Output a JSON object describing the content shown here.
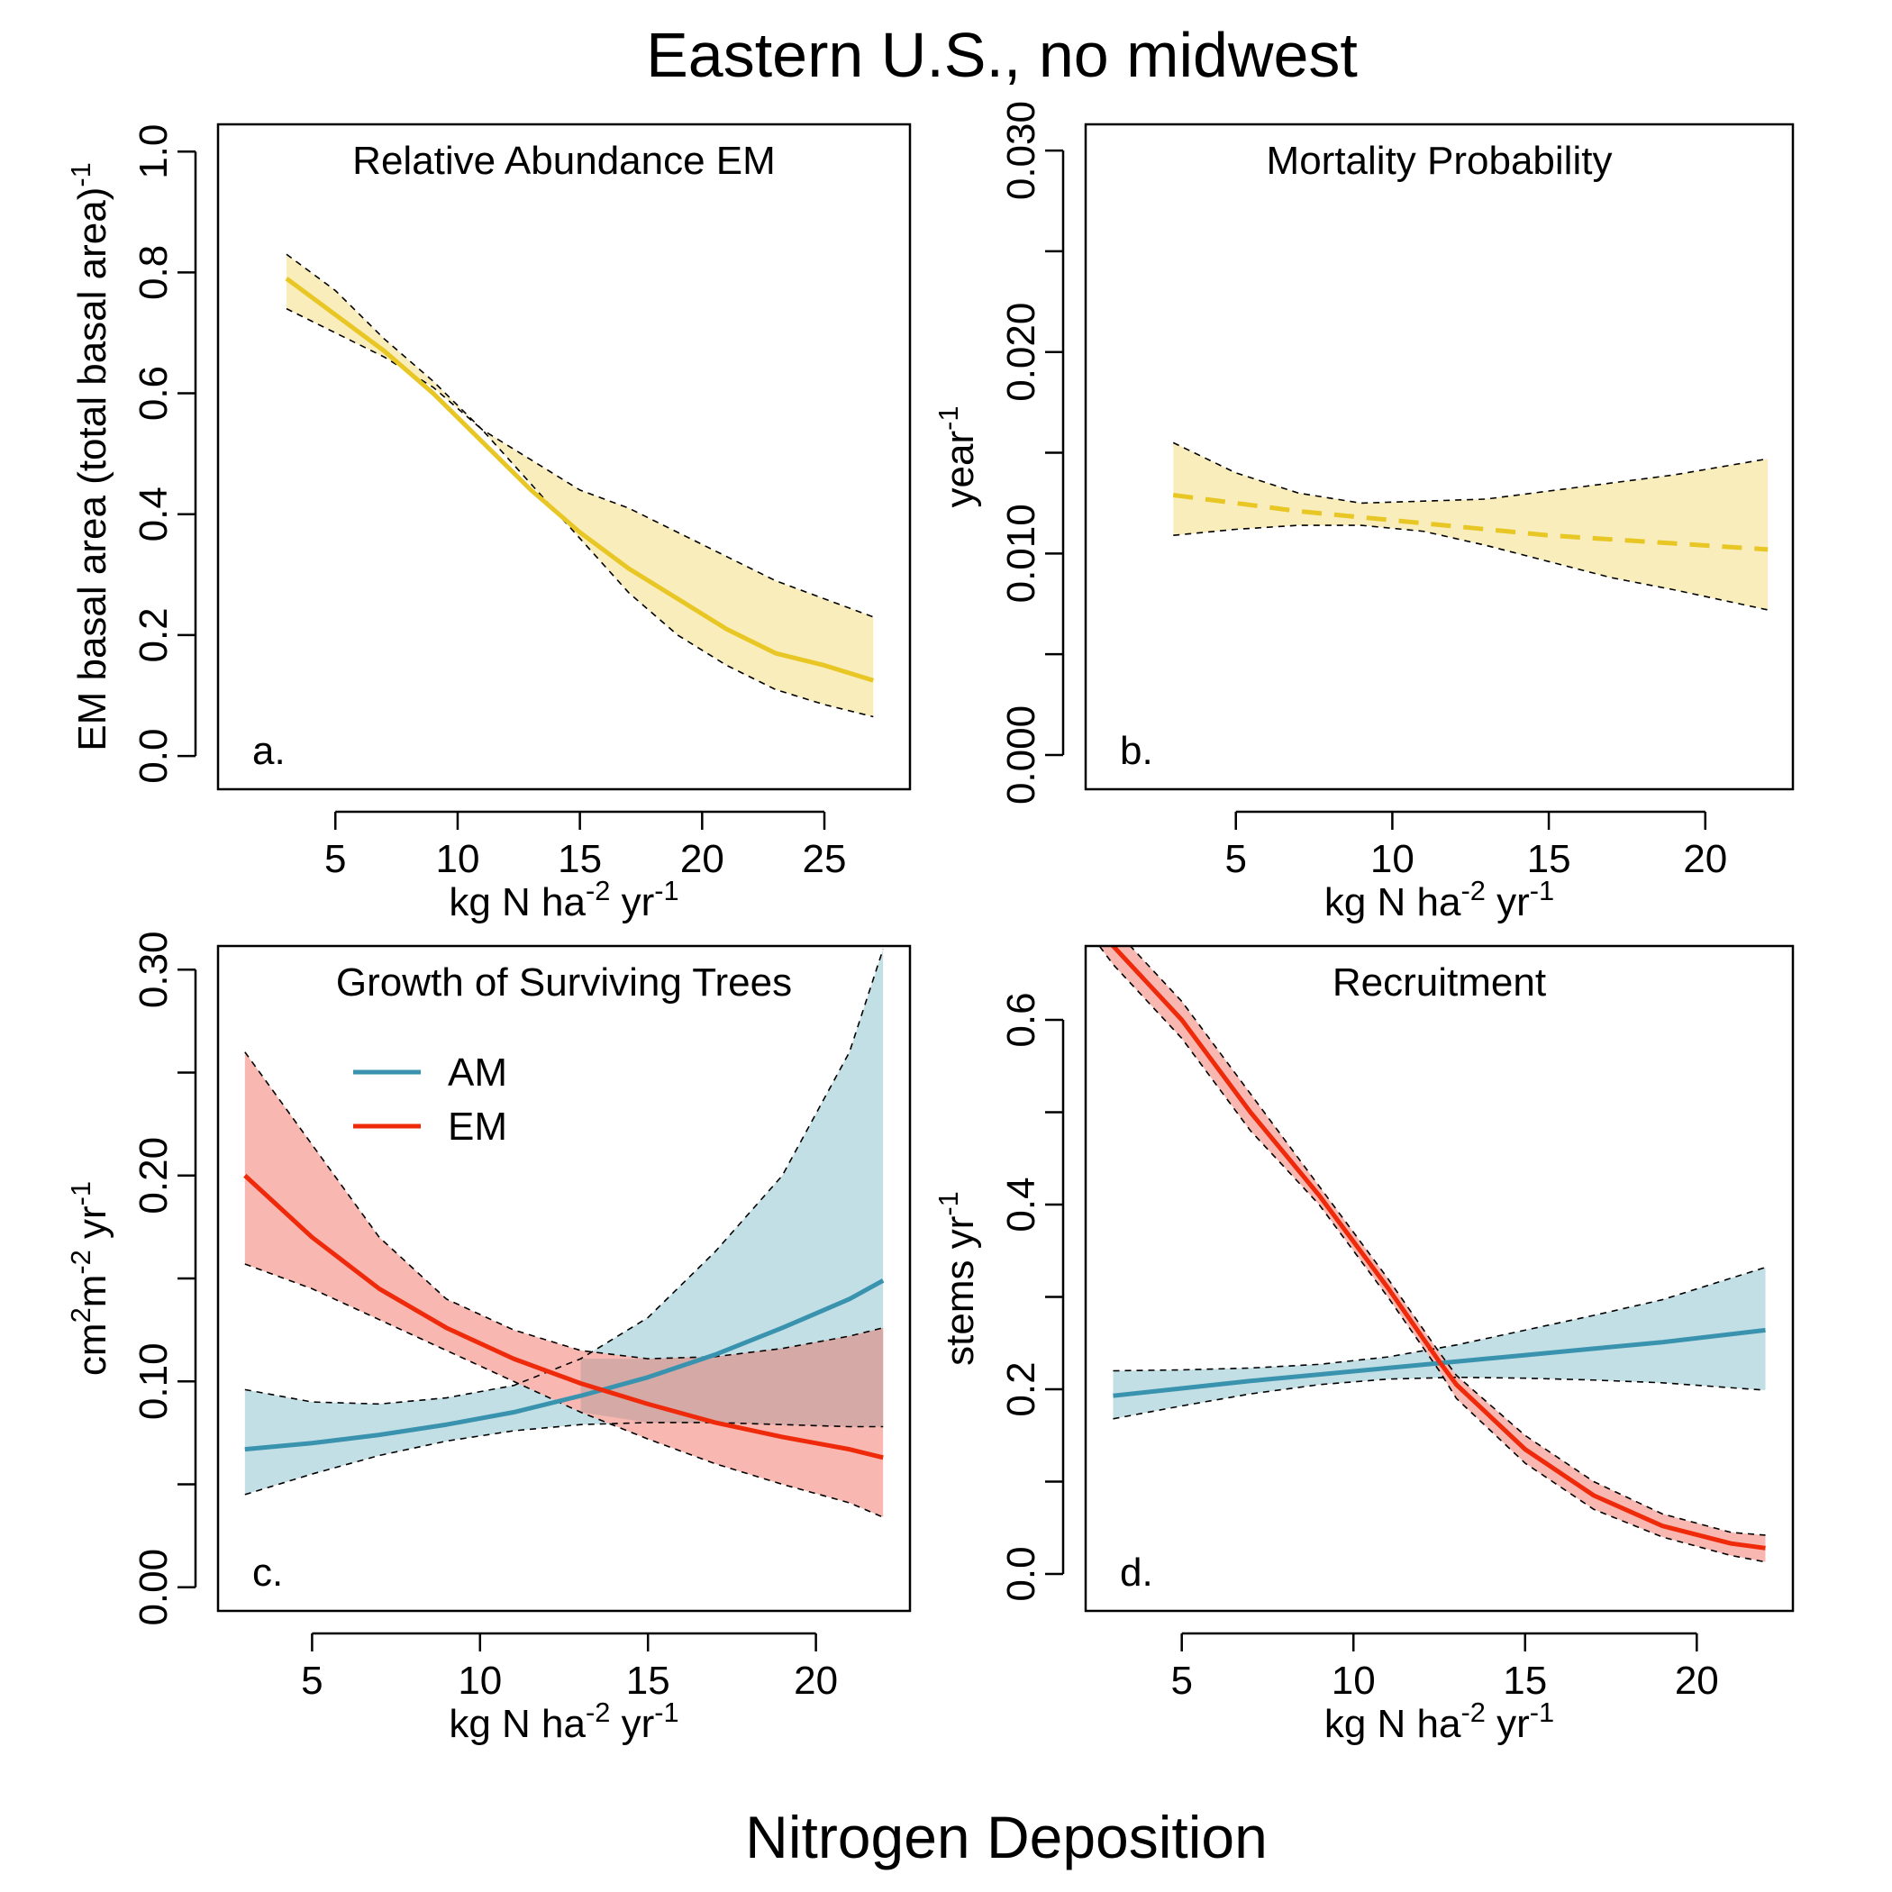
{
  "figure": {
    "title": "Eastern U.S., no midwest",
    "bottom_label": "Nitrogen Deposition"
  },
  "colors": {
    "am_line": "#3A93AE",
    "am_band": "#C3DFE6",
    "em_line": "#EE2A0B",
    "em_band": "#F8B8B1",
    "overlap_band": "#D5A9A6",
    "gold_line": "#E8C623",
    "gold_band": "#F8EDBB"
  },
  "chart_data": [
    {
      "id": "a",
      "type": "line",
      "title": "Relative Abundance EM",
      "panel_letter": "a.",
      "xlabel": {
        "main": "kg N ha",
        "sup1": "-2",
        "mid": " yr",
        "sup2": "-1"
      },
      "ylabel": {
        "main": "EM basal area  (total basal area)",
        "sup": "-1"
      },
      "xlim": [
        0.2,
        28.5
      ],
      "ylim": [
        -0.055,
        1.045
      ],
      "xticks": [
        5,
        10,
        15,
        20,
        25
      ],
      "xtick_labels": [
        "5",
        "10",
        "15",
        "20",
        "25"
      ],
      "yticks": [
        0.0,
        0.2,
        0.4,
        0.6,
        0.8,
        1.0
      ],
      "ytick_labels": [
        "0.0",
        "0.2",
        "0.4",
        "0.6",
        "0.8",
        "1.0"
      ],
      "series": [
        {
          "group": "EM",
          "style": "solid",
          "x": [
            3,
            5,
            7,
            9,
            11,
            13,
            15,
            17,
            19,
            21,
            23,
            25,
            27
          ],
          "y": [
            0.79,
            0.73,
            0.67,
            0.6,
            0.52,
            0.44,
            0.37,
            0.31,
            0.26,
            0.21,
            0.17,
            0.15,
            0.125
          ],
          "lower": [
            0.74,
            0.7,
            0.66,
            0.61,
            0.54,
            0.45,
            0.36,
            0.27,
            0.2,
            0.15,
            0.11,
            0.085,
            0.065
          ],
          "upper": [
            0.83,
            0.77,
            0.69,
            0.62,
            0.54,
            0.49,
            0.44,
            0.41,
            0.37,
            0.33,
            0.29,
            0.26,
            0.23
          ],
          "line_color": "#E8C623",
          "band_color": "#F8EDBB"
        }
      ]
    },
    {
      "id": "b",
      "type": "line",
      "title": "Mortality Probability",
      "panel_letter": "b.",
      "xlabel": {
        "main": "kg N ha",
        "sup1": "-2",
        "mid": " yr",
        "sup2": "-1"
      },
      "ylabel": {
        "main": "year",
        "sup": "-1"
      },
      "xlim": [
        0.2,
        22.8
      ],
      "ylim": [
        -0.0017,
        0.0313
      ],
      "xticks": [
        5,
        10,
        15,
        20
      ],
      "xtick_labels": [
        "5",
        "10",
        "15",
        "20"
      ],
      "yticks": [
        0.0,
        0.005,
        0.01,
        0.015,
        0.02,
        0.025,
        0.03
      ],
      "ytick_labels": [
        "0.000",
        "",
        "0.010",
        "",
        "0.020",
        "",
        "0.030"
      ],
      "series": [
        {
          "group": "EM",
          "style": "dashed",
          "x": [
            3,
            5,
            7,
            9,
            11,
            13,
            15,
            17,
            19,
            22
          ],
          "y": [
            0.0129,
            0.0125,
            0.0121,
            0.0118,
            0.0115,
            0.0112,
            0.0109,
            0.0107,
            0.0105,
            0.0102
          ],
          "lower": [
            0.0109,
            0.0112,
            0.0114,
            0.0114,
            0.0111,
            0.0104,
            0.0096,
            0.0088,
            0.0082,
            0.0072
          ],
          "upper": [
            0.0155,
            0.014,
            0.013,
            0.0125,
            0.0126,
            0.0127,
            0.0131,
            0.0135,
            0.0139,
            0.0147
          ],
          "line_color": "#E8C623",
          "band_color": "#F8EDBB"
        }
      ]
    },
    {
      "id": "c",
      "type": "line",
      "title": "Growth of Surviving Trees",
      "panel_letter": "c.",
      "xlabel": {
        "main": "kg N ha",
        "sup1": "-2",
        "mid": " yr",
        "sup2": "-1"
      },
      "ylabel": {
        "pre": "cm",
        "sup_a": "2",
        "main": "m",
        "sup_b": "-2",
        "mid": " yr",
        "sup": "-1"
      },
      "xlim": [
        2.2,
        22.8
      ],
      "ylim": [
        -0.0115,
        0.3115
      ],
      "xticks": [
        5,
        10,
        15,
        20
      ],
      "xtick_labels": [
        "5",
        "10",
        "15",
        "20"
      ],
      "yticks": [
        0.0,
        0.05,
        0.1,
        0.15,
        0.2,
        0.25,
        0.3
      ],
      "ytick_labels": [
        "0.00",
        "",
        "0.10",
        "",
        "0.20",
        "",
        "0.30"
      ],
      "legend": [
        {
          "label": "AM",
          "color": "#3A93AE"
        },
        {
          "label": "EM",
          "color": "#EE2A0B"
        }
      ],
      "series": [
        {
          "group": "AM",
          "name": "AM",
          "style": "solid",
          "x": [
            3,
            5,
            7,
            9,
            11,
            13,
            15,
            17,
            19,
            21,
            22
          ],
          "y": [
            0.067,
            0.07,
            0.074,
            0.079,
            0.085,
            0.093,
            0.102,
            0.113,
            0.126,
            0.14,
            0.149
          ],
          "lower": [
            0.045,
            0.055,
            0.064,
            0.071,
            0.076,
            0.079,
            0.08,
            0.08,
            0.079,
            0.078,
            0.078
          ],
          "upper": [
            0.096,
            0.09,
            0.089,
            0.092,
            0.098,
            0.111,
            0.131,
            0.163,
            0.2,
            0.26,
            0.31
          ],
          "line_color": "#3A93AE",
          "band_color": "#C3DFE6"
        },
        {
          "group": "EM",
          "name": "EM",
          "style": "solid",
          "x": [
            3,
            5,
            7,
            9,
            11,
            13,
            15,
            17,
            19,
            21,
            22
          ],
          "y": [
            0.2,
            0.17,
            0.145,
            0.126,
            0.111,
            0.099,
            0.089,
            0.08,
            0.073,
            0.067,
            0.063
          ],
          "lower": [
            0.157,
            0.145,
            0.13,
            0.115,
            0.1,
            0.085,
            0.072,
            0.06,
            0.05,
            0.041,
            0.034
          ],
          "upper": [
            0.26,
            0.215,
            0.17,
            0.14,
            0.125,
            0.115,
            0.111,
            0.112,
            0.116,
            0.122,
            0.126
          ],
          "line_color": "#EE2A0B",
          "band_color": "#F8B8B1"
        }
      ]
    },
    {
      "id": "d",
      "type": "line",
      "title": "Recruitment",
      "panel_letter": "d.",
      "xlabel": {
        "main": "kg N ha",
        "sup1": "-2",
        "mid": " yr",
        "sup2": "-1"
      },
      "ylabel": {
        "main": "stems yr",
        "sup": "-1"
      },
      "xlim": [
        2.2,
        22.8
      ],
      "ylim": [
        -0.04,
        0.68
      ],
      "xticks": [
        5,
        10,
        15,
        20
      ],
      "xtick_labels": [
        "5",
        "10",
        "15",
        "20"
      ],
      "yticks": [
        0.0,
        0.1,
        0.2,
        0.3,
        0.4,
        0.5,
        0.6
      ],
      "ytick_labels": [
        "0.0",
        "",
        "0.2",
        "",
        "0.4",
        "",
        "0.6"
      ],
      "series": [
        {
          "group": "AM",
          "style": "solid",
          "x": [
            3,
            5,
            7,
            9,
            11,
            13,
            15,
            17,
            19,
            22
          ],
          "y": [
            0.193,
            0.201,
            0.209,
            0.216,
            0.223,
            0.23,
            0.237,
            0.244,
            0.251,
            0.264
          ],
          "lower": [
            0.168,
            0.182,
            0.195,
            0.205,
            0.211,
            0.213,
            0.212,
            0.21,
            0.207,
            0.199
          ],
          "upper": [
            0.22,
            0.221,
            0.223,
            0.227,
            0.235,
            0.248,
            0.264,
            0.28,
            0.297,
            0.332
          ],
          "line_color": "#3A93AE",
          "band_color": "#C3DFE6"
        },
        {
          "group": "EM",
          "style": "solid",
          "x": [
            2.2,
            3,
            5,
            7,
            9,
            11,
            12.5,
            13,
            15,
            17,
            19,
            21,
            22
          ],
          "y": [
            0.72,
            0.68,
            0.6,
            0.5,
            0.41,
            0.31,
            0.23,
            0.205,
            0.135,
            0.085,
            0.052,
            0.033,
            0.028
          ],
          "lower": [
            0.7,
            0.66,
            0.58,
            0.48,
            0.4,
            0.3,
            0.22,
            0.19,
            0.12,
            0.07,
            0.04,
            0.02,
            0.013
          ],
          "upper": [
            0.74,
            0.7,
            0.62,
            0.52,
            0.42,
            0.32,
            0.24,
            0.215,
            0.15,
            0.1,
            0.065,
            0.045,
            0.042
          ],
          "line_color": "#EE2A0B",
          "band_color": "#F8B8B1"
        }
      ]
    }
  ]
}
